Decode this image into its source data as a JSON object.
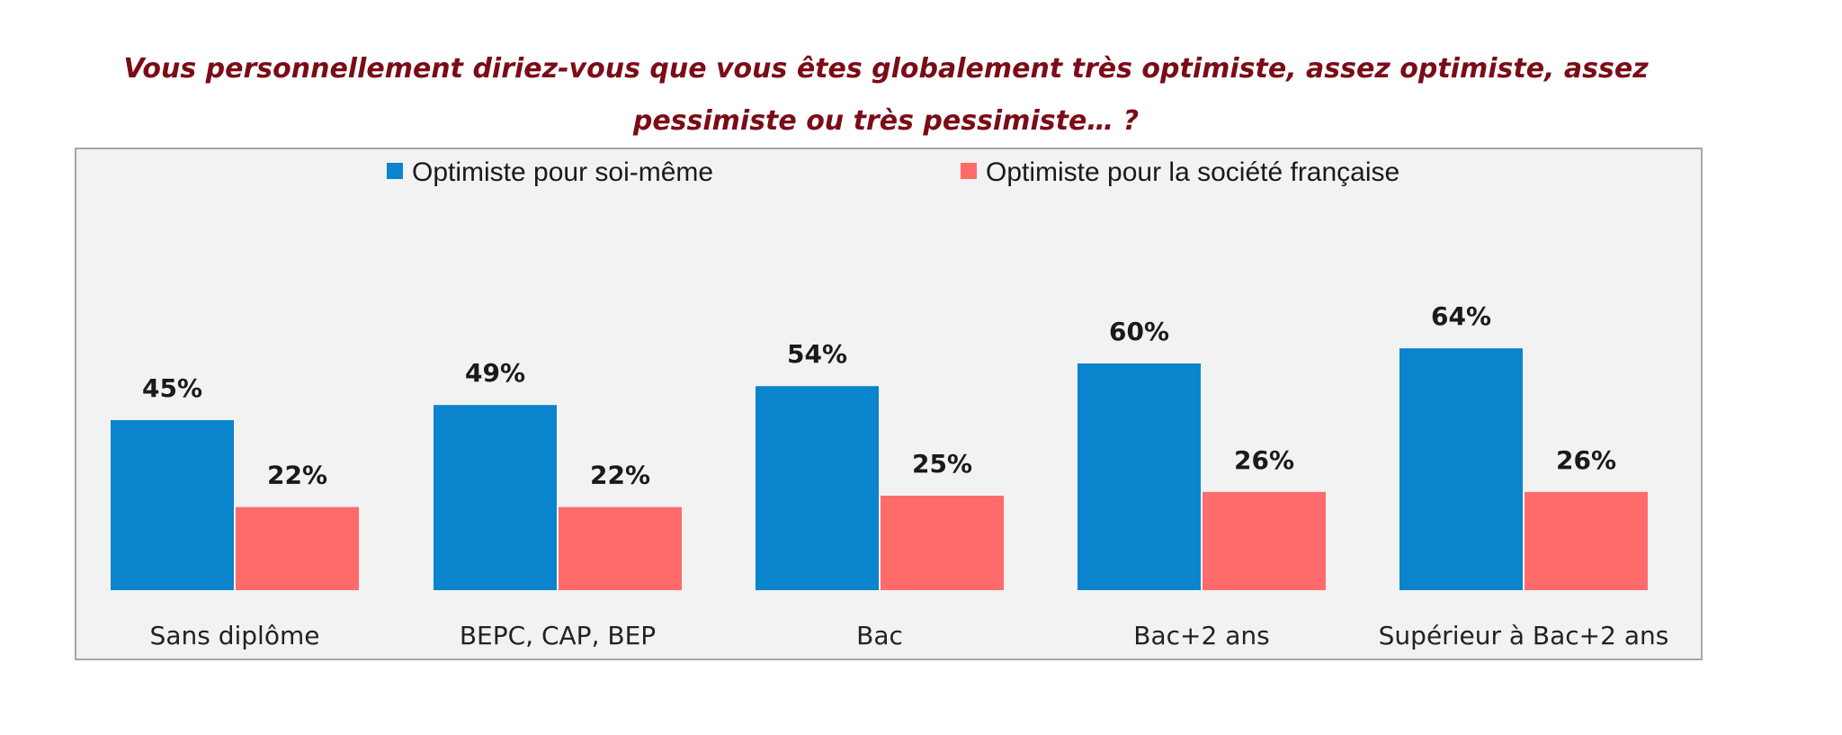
{
  "title": "Vous personnellement diriez-vous que vous êtes globalement très optimiste, assez optimiste, assez pessimiste ou très pessimiste… ?",
  "chart_data": {
    "type": "bar",
    "title": "Vous personnellement diriez-vous que vous êtes globalement très optimiste, assez optimiste, assez pessimiste ou très pessimiste… ?",
    "categories": [
      "Sans diplôme",
      "BEPC, CAP, BEP",
      "Bac",
      "Bac+2 ans",
      "Supérieur à Bac+2 ans"
    ],
    "series": [
      {
        "name": "Optimiste pour soi-même",
        "color": "#0a84cc",
        "values": [
          45,
          49,
          54,
          60,
          64
        ],
        "labels": [
          "45%",
          "49%",
          "54%",
          "60%",
          "64%"
        ]
      },
      {
        "name": "Optimiste pour la société française",
        "color": "#ff6b6b",
        "values": [
          22,
          22,
          25,
          26,
          26
        ],
        "labels": [
          "22%",
          "22%",
          "25%",
          "26%",
          "26%"
        ]
      }
    ],
    "unit": "%",
    "ylim": [
      0,
      100
    ],
    "grid": false,
    "legend_position": "top"
  }
}
